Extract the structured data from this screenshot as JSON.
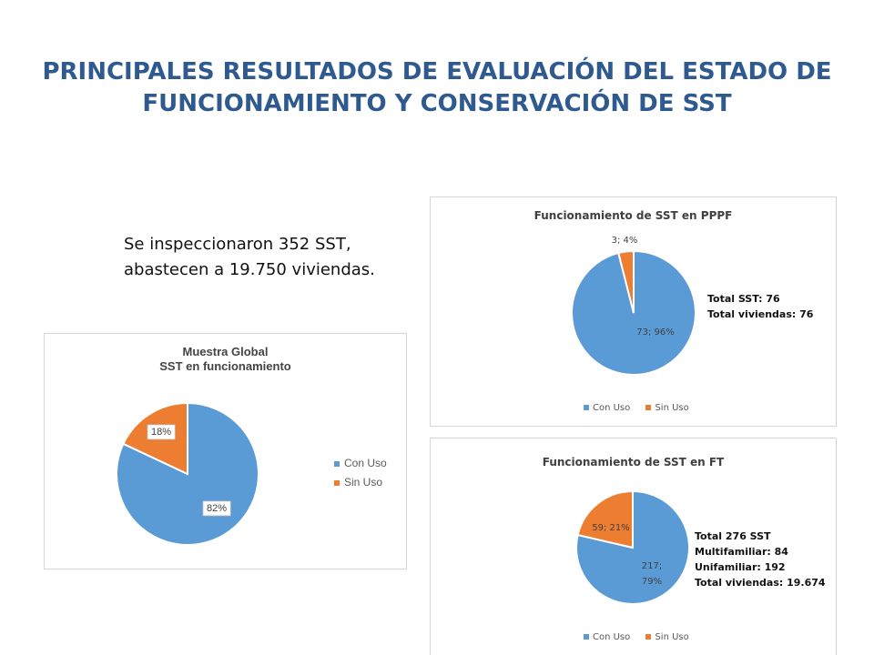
{
  "page": {
    "title_line1": "PRINCIPALES RESULTADOS DE EVALUACIÓN DEL ESTADO DE",
    "title_line2": "FUNCIONAMIENTO Y CONSERVACIÓN DE SST",
    "intro_line1": "Se inspeccionaron 352 SST,",
    "intro_line2": "abastecen a 19.750 viviendas."
  },
  "colors": {
    "con_uso": "#5b9bd5",
    "sin_uso": "#ed7d31"
  },
  "chart_data": [
    {
      "type": "pie",
      "title_line1": "Muestra Global",
      "title_line2": "SST en funcionamiento",
      "categories": [
        "Con Uso",
        "Sin Uso"
      ],
      "values": [
        82,
        18
      ],
      "labels": [
        "82%",
        "18%"
      ],
      "legend": [
        "Con Uso",
        "Sin Uso"
      ],
      "legend_position": "right"
    },
    {
      "type": "pie",
      "title": "Funcionamiento de SST en PPPF",
      "categories": [
        "Con Uso",
        "Sin Uso"
      ],
      "values": [
        73,
        3
      ],
      "percent": [
        96,
        4
      ],
      "labels": [
        "73; 96%",
        "3; 4%"
      ],
      "legend": [
        "Con Uso",
        "Sin Uso"
      ],
      "legend_position": "bottom",
      "notes": [
        "Total SST: 76",
        "Total viviendas: 76"
      ]
    },
    {
      "type": "pie",
      "title": "Funcionamiento de SST en FT",
      "categories": [
        "Con Uso",
        "Sin Uso"
      ],
      "values": [
        217,
        59
      ],
      "percent": [
        79,
        21
      ],
      "labels": [
        "217;",
        "79%",
        "59; 21%"
      ],
      "legend": [
        "Con Uso",
        "Sin Uso"
      ],
      "legend_position": "bottom",
      "notes": [
        "Total 276 SST",
        "Multifamiliar: 84",
        "Unifamiliar: 192",
        "Total viviendas: 19.674"
      ]
    }
  ]
}
